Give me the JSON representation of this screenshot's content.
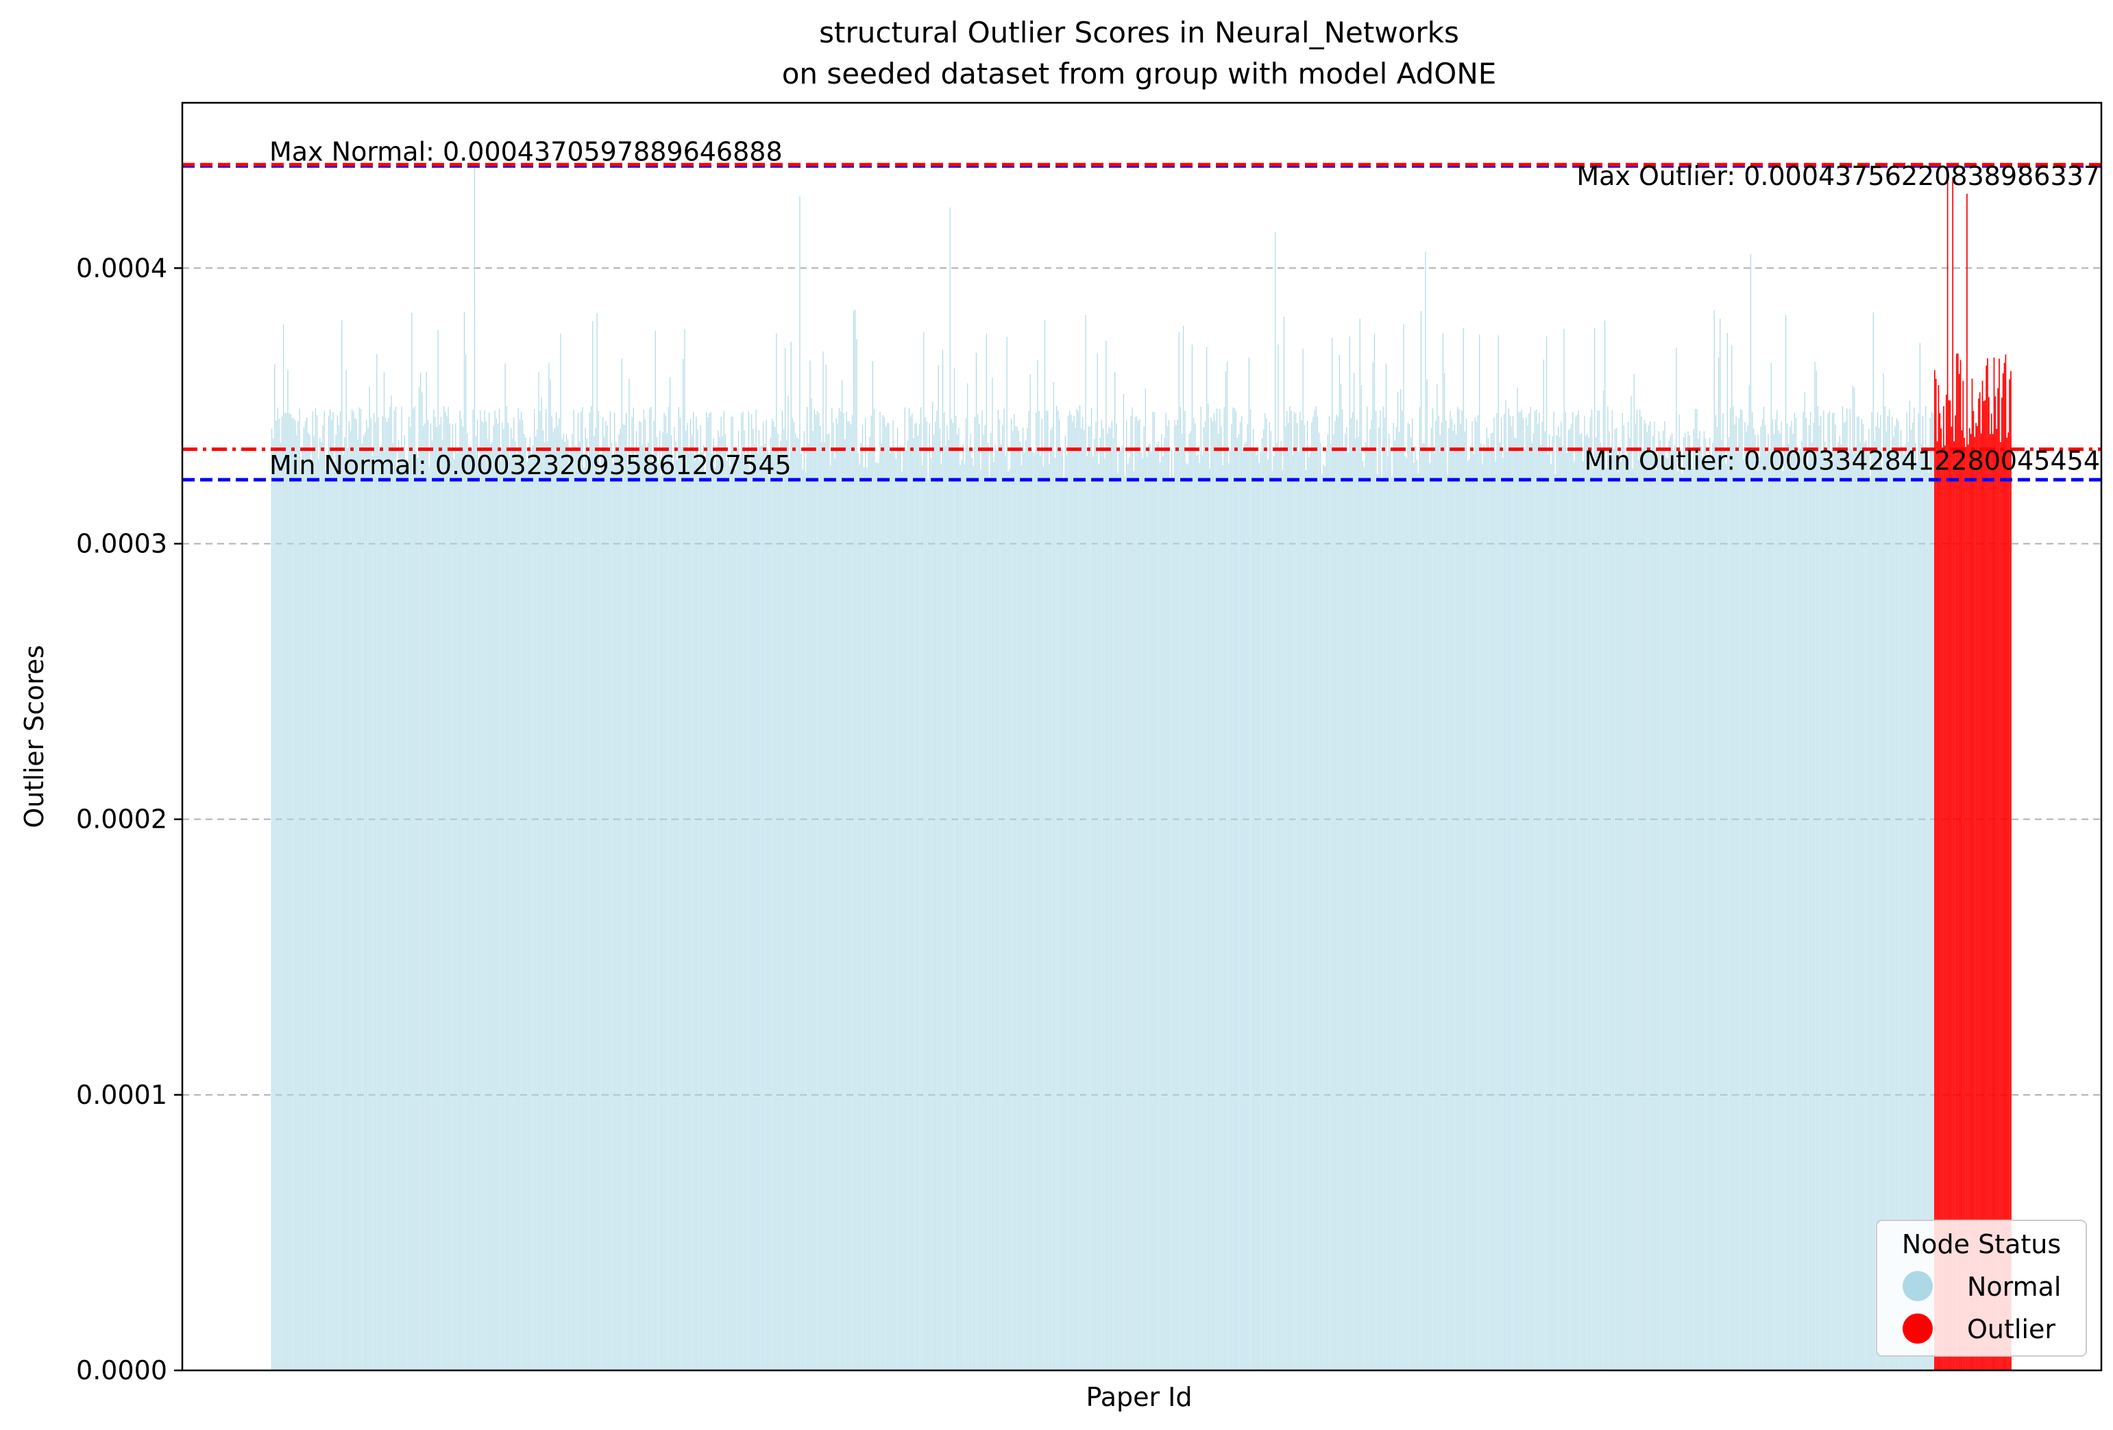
{
  "chart_data": {
    "type": "bar",
    "title_line1": "structural Outlier Scores in Neural_Networks",
    "title_line2": "on seeded dataset from group with model AdONE",
    "xlabel": "Paper Id",
    "ylabel": "Outlier Scores",
    "ylim": [
      0,
      0.00046
    ],
    "yticks": [
      {
        "value": 0,
        "label": "0.0000"
      },
      {
        "value": 0.0001,
        "label": "0.0001"
      },
      {
        "value": 0.0002,
        "label": "0.0002"
      },
      {
        "value": 0.0003,
        "label": "0.0003"
      },
      {
        "value": 0.0004,
        "label": "0.0004"
      }
    ],
    "grid": "y-dashed",
    "legend": {
      "title": "Node Status",
      "placement": "lower-right",
      "entries": [
        {
          "label": "Normal",
          "color": "#add8e6"
        },
        {
          "label": "Outlier",
          "color": "#ff0000"
        }
      ]
    },
    "reference_lines": [
      {
        "label": "Max Normal: 0.0004370597889646888",
        "value": 0.0004370597889646888,
        "color": "#0000ff",
        "style": "dashed",
        "label_align": "left"
      },
      {
        "label": "Max Outlier: 0.00043756220838986337",
        "value": 0.00043756220838986337,
        "color": "#ff0000",
        "style": "dashed",
        "label_align": "right"
      },
      {
        "label": "Min Normal: 0.00032320935861207545",
        "value": 0.00032320935861207545,
        "color": "#0000ff",
        "style": "dashed",
        "label_align": "left"
      },
      {
        "label": "Min Outlier: 0.00033428412280045454",
        "value": 0.00033428412280045455,
        "color": "#ff0000",
        "style": "dashdot",
        "label_align": "right"
      }
    ],
    "series": [
      {
        "name": "Normal",
        "color": "#add8e6",
        "count": 1140,
        "typical_range": [
          0.000323,
          0.000437
        ],
        "peaks": [
          0.000437,
          0.000426,
          0.000422,
          0.000413,
          0.000406,
          0.000405
        ]
      },
      {
        "name": "Outlier",
        "color": "#ff0000",
        "count": 60,
        "typical_range": [
          0.000334,
          0.000438
        ],
        "peaks": [
          0.000437,
          0.000433,
          0.000427
        ]
      }
    ]
  }
}
